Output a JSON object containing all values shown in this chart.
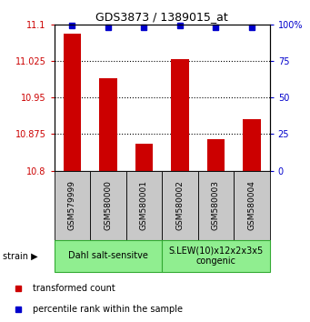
{
  "title": "GDS3873 / 1389015_at",
  "samples": [
    "GSM579999",
    "GSM580000",
    "GSM580001",
    "GSM580002",
    "GSM580003",
    "GSM580004"
  ],
  "bar_values": [
    11.08,
    10.99,
    10.855,
    11.028,
    10.865,
    10.905
  ],
  "percentile_values": [
    99,
    98,
    98,
    99,
    98,
    98
  ],
  "ylim_left": [
    10.8,
    11.1
  ],
  "ylim_right": [
    0,
    100
  ],
  "yticks_left": [
    10.8,
    10.875,
    10.95,
    11.025,
    11.1
  ],
  "yticks_right": [
    0,
    25,
    50,
    75,
    100
  ],
  "ytick_labels_left": [
    "10.8",
    "10.875",
    "10.95",
    "11.025",
    "11.1"
  ],
  "ytick_labels_right": [
    "0",
    "25",
    "50",
    "75",
    "100%"
  ],
  "bar_color": "#cc0000",
  "marker_color": "#0000cc",
  "grid_color": "#000000",
  "strain_group1_label": "Dahl salt-sensitve",
  "strain_group2_label": "S.LEW(10)x12x2x3x5\ncongenic",
  "strain_bg_color": "#90ee90",
  "sample_bg_color": "#c8c8c8",
  "plot_bg_color": "#ffffff",
  "legend_label_red": "transformed count",
  "legend_label_blue": "percentile rank within the sample",
  "bar_width": 0.5
}
